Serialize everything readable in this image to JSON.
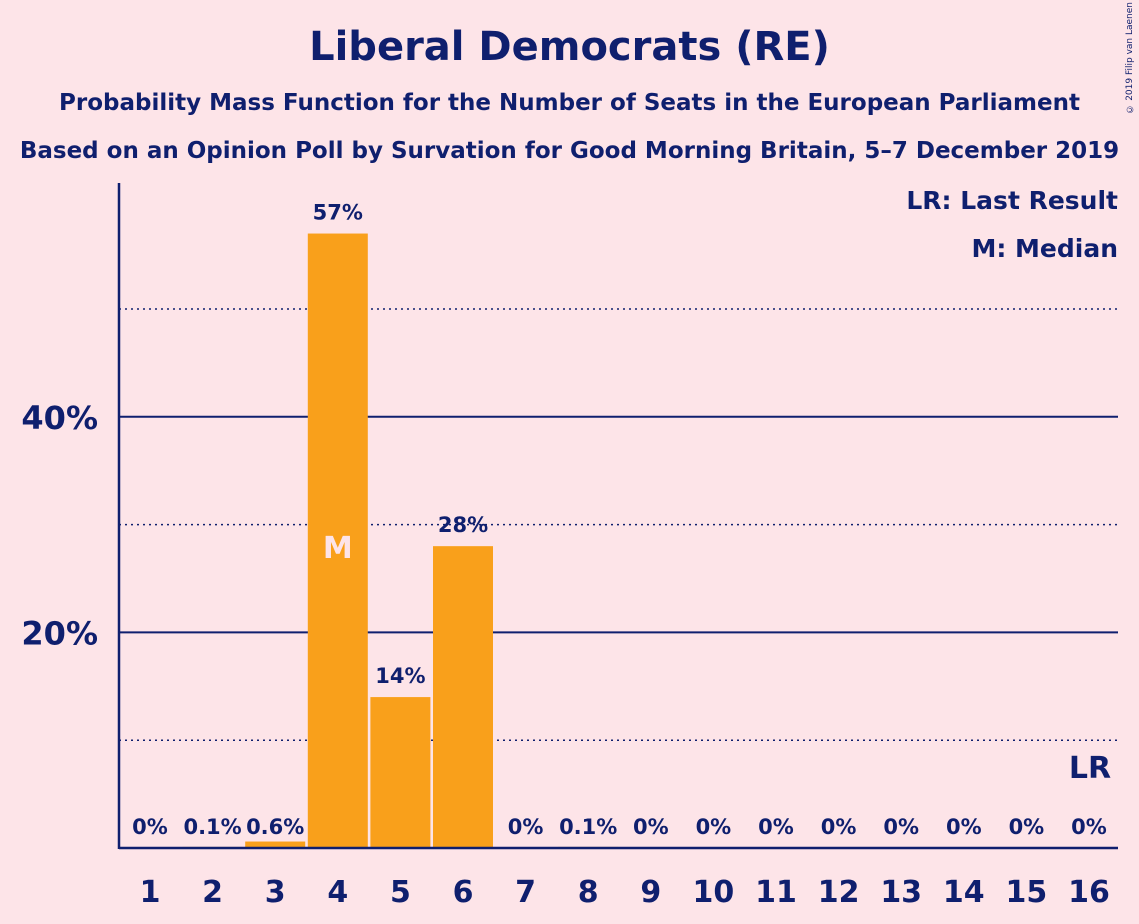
{
  "header": {
    "title": "Liberal Democrats (RE)",
    "subtitle1": "Probability Mass Function for the Number of Seats in the European Parliament",
    "subtitle2": "Based on an Opinion Poll by Survation for Good Morning Britain, 5–7 December 2019",
    "copyright": "© 2019 Filip van Laenen"
  },
  "legend": {
    "last_result": "LR: Last Result",
    "median": "M: Median"
  },
  "colors": {
    "background": "#fde4e8",
    "bar": "#f9a01b",
    "text": "#0f1f6e",
    "median_marker": "#fde4e8"
  },
  "chart_data": {
    "type": "bar",
    "categories": [
      "1",
      "2",
      "3",
      "4",
      "5",
      "6",
      "7",
      "8",
      "9",
      "10",
      "11",
      "12",
      "13",
      "14",
      "15",
      "16"
    ],
    "values": [
      0,
      0.1,
      0.6,
      57,
      14,
      28,
      0,
      0.1,
      0,
      0,
      0,
      0,
      0,
      0,
      0,
      0
    ],
    "labels": [
      "0%",
      "0.1%",
      "0.6%",
      "57%",
      "14%",
      "28%",
      "0%",
      "0.1%",
      "0%",
      "0%",
      "0%",
      "0%",
      "0%",
      "0%",
      "0%",
      "0%"
    ],
    "ylim": [
      0,
      61.7
    ],
    "major_gridlines": [
      20,
      40
    ],
    "minor_gridlines": [
      10,
      30,
      50
    ],
    "ytick_labels": [
      "20%",
      "40%"
    ],
    "median_seat": "4",
    "median_marker": "M",
    "last_result_seat": "16",
    "last_result_marker": "LR"
  }
}
